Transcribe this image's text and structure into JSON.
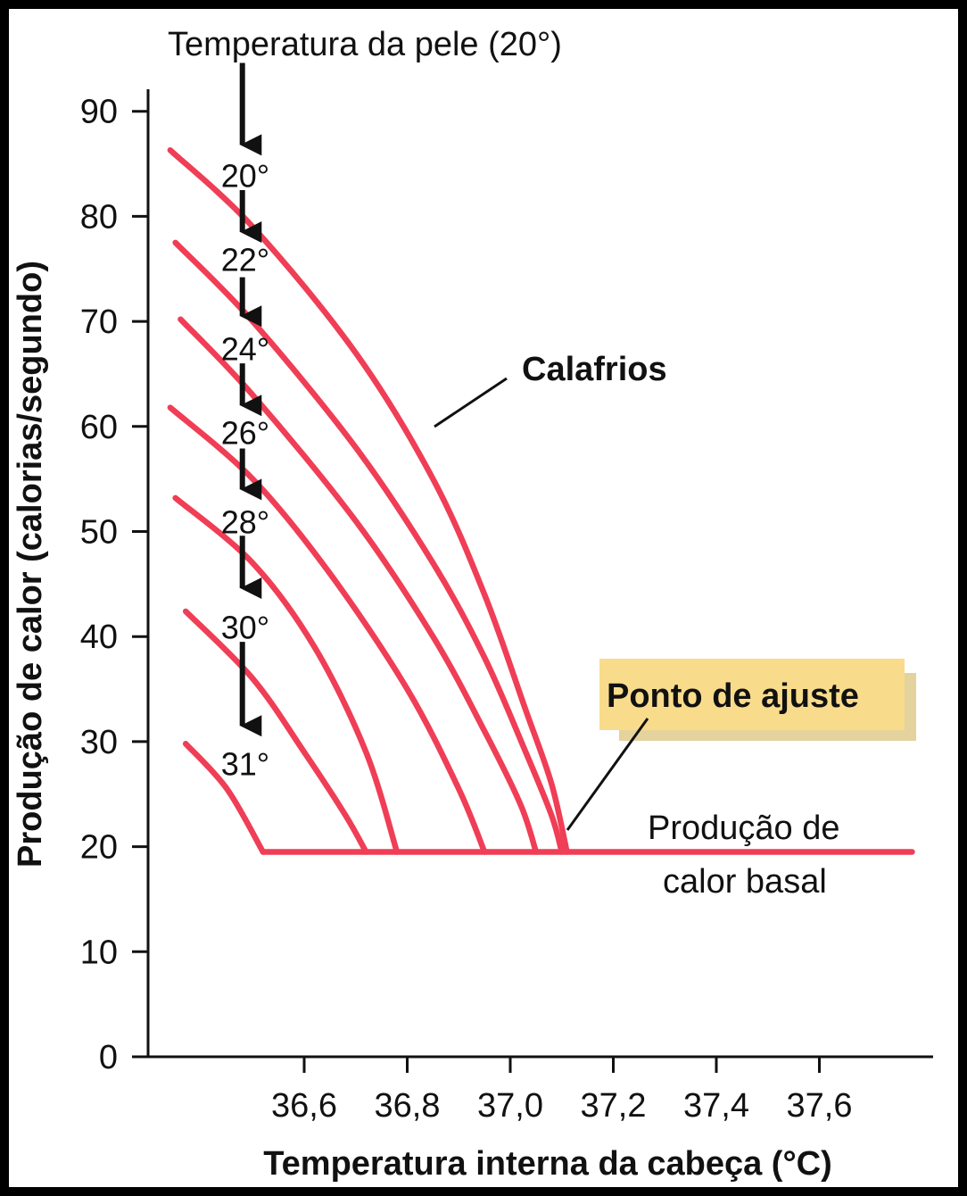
{
  "chart_data": {
    "type": "line",
    "title": "Temperatura da pele (20°)",
    "xlabel": "Temperatura interna da cabeça (°C)",
    "ylabel": "Produção de calor (calorias/segundo)",
    "xlim": [
      36.3,
      37.8
    ],
    "ylim": [
      0,
      90
    ],
    "x_ticks": [
      "36,6",
      "36,8",
      "37,0",
      "37,2",
      "37,4",
      "37,6"
    ],
    "y_ticks": [
      "0",
      "10",
      "20",
      "30",
      "40",
      "50",
      "60",
      "70",
      "80",
      "90"
    ],
    "grid": false,
    "colors": {
      "curve": "#ef3e56",
      "arrow": "#111111",
      "callout_bg": "#f8dc8c",
      "callout_shadow": "#e6d29a"
    },
    "series": [
      {
        "label": "20°",
        "points": [
          [
            36.34,
            86.3
          ],
          [
            36.5,
            79
          ],
          [
            36.7,
            67
          ],
          [
            36.85,
            55
          ],
          [
            36.95,
            44
          ],
          [
            37.03,
            33
          ],
          [
            37.08,
            26
          ],
          [
            37.11,
            19.5
          ]
        ]
      },
      {
        "label": "22°",
        "points": [
          [
            36.35,
            77.5
          ],
          [
            36.5,
            70
          ],
          [
            36.7,
            58
          ],
          [
            36.85,
            47
          ],
          [
            36.95,
            38
          ],
          [
            37.03,
            29
          ],
          [
            37.08,
            23
          ],
          [
            37.1,
            19.5
          ]
        ]
      },
      {
        "label": "24°",
        "points": [
          [
            36.36,
            70.2
          ],
          [
            36.5,
            63
          ],
          [
            36.7,
            51
          ],
          [
            36.85,
            40
          ],
          [
            36.95,
            31
          ],
          [
            37.02,
            24
          ],
          [
            37.05,
            19.5
          ]
        ]
      },
      {
        "label": "26°",
        "points": [
          [
            36.34,
            61.8
          ],
          [
            36.5,
            55
          ],
          [
            36.65,
            46
          ],
          [
            36.8,
            35
          ],
          [
            36.9,
            25.5
          ],
          [
            36.95,
            19.5
          ]
        ]
      },
      {
        "label": "28°",
        "points": [
          [
            36.35,
            53.2
          ],
          [
            36.5,
            47
          ],
          [
            36.62,
            39
          ],
          [
            36.72,
            29
          ],
          [
            36.78,
            19.5
          ]
        ]
      },
      {
        "label": "30°",
        "points": [
          [
            36.37,
            42.4
          ],
          [
            36.5,
            36
          ],
          [
            36.6,
            29
          ],
          [
            36.68,
            23
          ],
          [
            36.72,
            19.5
          ]
        ]
      },
      {
        "label": "31°",
        "points": [
          [
            36.37,
            29.8
          ],
          [
            36.45,
            25.5
          ],
          [
            36.52,
            19.5
          ]
        ]
      },
      {
        "label": "basal",
        "points": [
          [
            36.52,
            19.5
          ],
          [
            37.78,
            19.5
          ]
        ]
      }
    ],
    "skin_labels": [
      {
        "text": "20°",
        "x": 36.48,
        "y": 84
      },
      {
        "text": "22°",
        "x": 36.48,
        "y": 76
      },
      {
        "text": "24°",
        "x": 36.48,
        "y": 67.5
      },
      {
        "text": "26°",
        "x": 36.48,
        "y": 59.5
      },
      {
        "text": "28°",
        "x": 36.48,
        "y": 51
      },
      {
        "text": "30°",
        "x": 36.48,
        "y": 41
      },
      {
        "text": "31°",
        "x": 36.48,
        "y": 28
      }
    ],
    "arrows": [
      {
        "x": 36.48,
        "y_from": 94.6,
        "y_to": 86.8
      },
      {
        "x": 36.48,
        "y_from": 82.5,
        "y_to": 78.5
      },
      {
        "x": 36.48,
        "y_from": 74.2,
        "y_to": 70.5
      },
      {
        "x": 36.48,
        "y_from": 66.0,
        "y_to": 62.0
      },
      {
        "x": 36.48,
        "y_from": 57.9,
        "y_to": 54.0
      },
      {
        "x": 36.48,
        "y_from": 49.6,
        "y_to": 44.6
      },
      {
        "x": 36.48,
        "y_from": 39.5,
        "y_to": 31.5
      }
    ],
    "annotations": {
      "calafrios": "Calafrios",
      "ponto_de_ajuste": "Ponto de ajuste",
      "basal_line1": "Produção de",
      "basal_line2": "calor basal"
    }
  }
}
